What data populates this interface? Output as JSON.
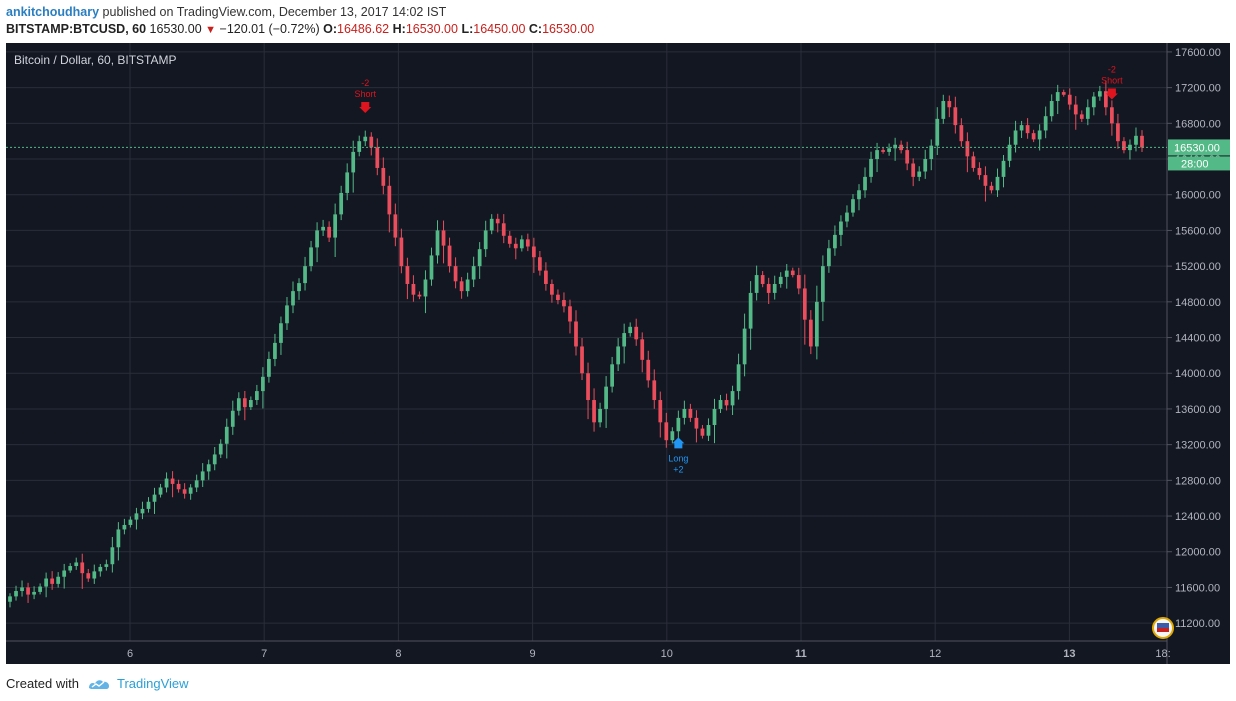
{
  "header": {
    "author": "ankitchoudhary",
    "published_text": " published on TradingView.com, December 13, 2017 14:02 IST",
    "symbol": "BITSTAMP:BTCUSD, 60",
    "last": "16530.00",
    "change_arrow": "▼",
    "change": "−120.01 (−0.72%)",
    "o_label": "O:",
    "o_value": "16486.62",
    "h_label": "H:",
    "h_value": "16530.00",
    "l_label": "L:",
    "l_value": "16450.00",
    "c_label": "C:",
    "c_value": "16530.00"
  },
  "chart_data": {
    "type": "candlestick",
    "title": "Bitcoin / Dollar, 60, BITSTAMP",
    "x_ticks": [
      "6",
      "7",
      "8",
      "9",
      "10",
      "11",
      "12",
      "13",
      "18:"
    ],
    "y_ticks": [
      11200,
      11600,
      12000,
      12400,
      12800,
      13200,
      13600,
      14000,
      14400,
      14800,
      15200,
      15600,
      16000,
      16400,
      16800,
      17200,
      17600
    ],
    "ylim": [
      11000,
      17700
    ],
    "last_price": "16530.00",
    "countdown": "28:00",
    "closes": [
      11500,
      11560,
      11600,
      11520,
      11550,
      11610,
      11700,
      11640,
      11720,
      11790,
      11840,
      11880,
      11760,
      11700,
      11780,
      11830,
      11860,
      12050,
      12250,
      12300,
      12360,
      12430,
      12480,
      12560,
      12640,
      12720,
      12820,
      12760,
      12700,
      12650,
      12720,
      12800,
      12900,
      12980,
      13090,
      13210,
      13400,
      13580,
      13720,
      13620,
      13700,
      13800,
      13960,
      14160,
      14340,
      14560,
      14760,
      14920,
      15010,
      15200,
      15410,
      15600,
      15640,
      15520,
      15780,
      16020,
      16250,
      16480,
      16600,
      16650,
      16530,
      16300,
      16100,
      15780,
      15520,
      15200,
      15000,
      14880,
      14860,
      15050,
      15320,
      15600,
      15430,
      15200,
      15030,
      14920,
      15050,
      15200,
      15390,
      15600,
      15730,
      15680,
      15540,
      15450,
      15400,
      15500,
      15420,
      15300,
      15150,
      15000,
      14880,
      14820,
      14750,
      14580,
      14300,
      14000,
      13700,
      13450,
      13600,
      13850,
      14100,
      14300,
      14450,
      14520,
      14380,
      14150,
      13920,
      13700,
      13450,
      13250,
      13350,
      13500,
      13600,
      13500,
      13380,
      13300,
      13420,
      13600,
      13700,
      13640,
      13800,
      14100,
      14500,
      14900,
      15100,
      15000,
      14900,
      15000,
      15080,
      15150,
      15100,
      14950,
      14600,
      14300,
      14800,
      15200,
      15400,
      15550,
      15700,
      15800,
      15950,
      16050,
      16200,
      16400,
      16500,
      16480,
      16520,
      16560,
      16500,
      16350,
      16200,
      16260,
      16400,
      16550,
      16850,
      17050,
      16980,
      16780,
      16600,
      16430,
      16300,
      16220,
      16100,
      16050,
      16200,
      16380,
      16560,
      16720,
      16780,
      16690,
      16620,
      16720,
      16880,
      17050,
      17150,
      17120,
      17010,
      16900,
      16850,
      16980,
      17100,
      17160,
      16980,
      16800,
      16600,
      16500,
      16560,
      16660,
      16530
    ],
    "signals": [
      {
        "type": "short",
        "label": "Short",
        "qty": "-2",
        "candle": 59
      },
      {
        "type": "long",
        "label": "Long",
        "qty": "+2",
        "candle": 111
      },
      {
        "type": "short",
        "label": "Short",
        "qty": "-2",
        "candle": 183
      }
    ],
    "colors": {
      "up": "#53b987",
      "down": "#eb4d5c",
      "background": "#131722",
      "grid": "#2a2e39",
      "text": "#b2b5be",
      "price_line": "#53b987",
      "short": "#e0141e",
      "long": "#2196f3"
    }
  },
  "footer": {
    "created_with": "Created with",
    "brand": "TradingView"
  }
}
